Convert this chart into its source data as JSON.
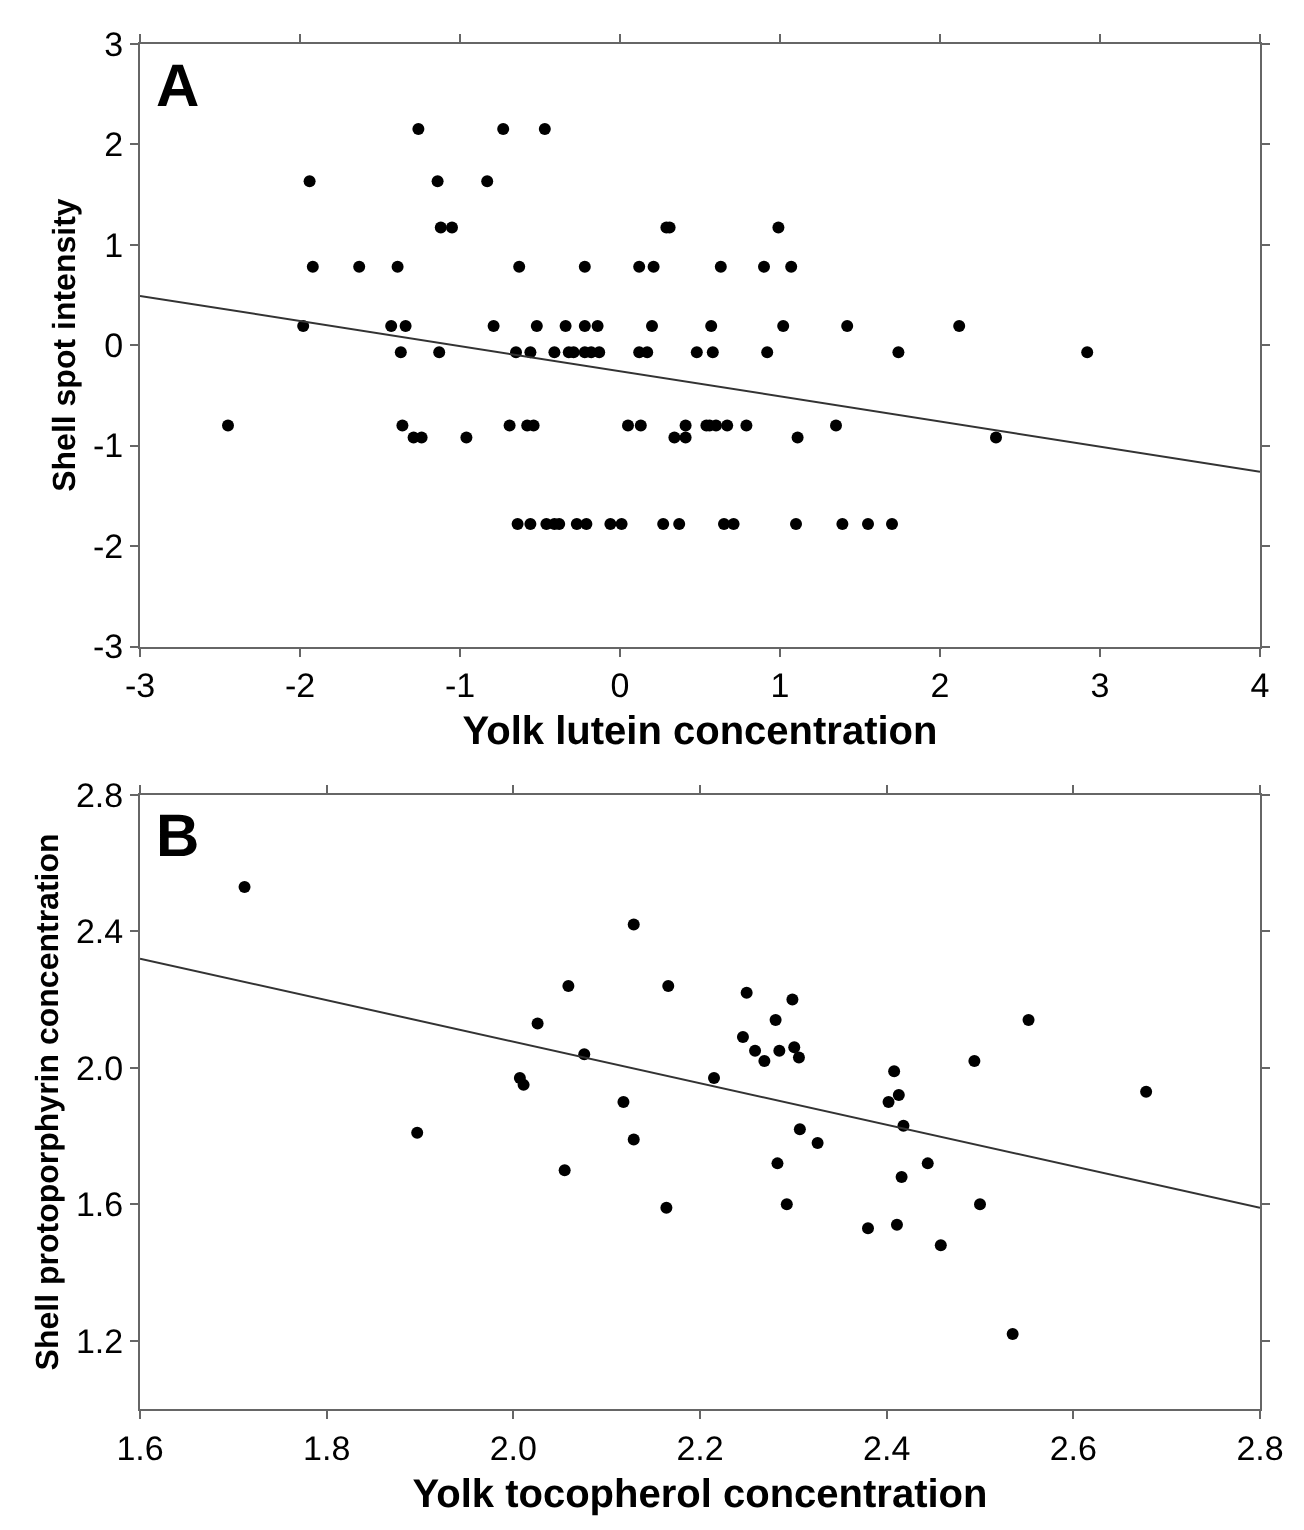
{
  "chart_data": [
    {
      "type": "scatter",
      "xlabel": "Yolk lutein concentration",
      "ylabel": "Shell spot intensity",
      "annotations": [
        "A"
      ],
      "xlim": [
        -3,
        4
      ],
      "ylim": [
        -3,
        3
      ],
      "xticks": [
        -3,
        -2,
        -1,
        0,
        1,
        2,
        3,
        4
      ],
      "yticks": [
        -3,
        -2,
        -1,
        0,
        1,
        2,
        3
      ],
      "series": [
        {
          "marker": "circle",
          "color": "#000000",
          "x": [
            -1.26,
            -0.73,
            -0.47,
            -1.94,
            -1.14,
            -0.83,
            -1.12,
            -1.05,
            0.29,
            0.31,
            0.99,
            -1.92,
            -1.63,
            -1.39,
            -0.63,
            -0.22,
            0.12,
            0.21,
            0.63,
            0.9,
            1.07,
            -1.98,
            -1.43,
            -1.34,
            -0.79,
            -0.52,
            -0.34,
            -0.22,
            -0.14,
            0.2,
            0.57,
            1.02,
            1.42,
            2.12,
            -1.37,
            -1.13,
            -0.65,
            -0.56,
            -0.41,
            -0.32,
            -0.29,
            -0.22,
            -0.18,
            -0.13,
            0.12,
            0.17,
            0.48,
            0.58,
            0.92,
            1.74,
            2.92,
            -2.45,
            -1.36,
            -0.69,
            -0.58,
            -0.54,
            0.05,
            0.13,
            0.41,
            0.54,
            0.56,
            0.6,
            0.67,
            0.79,
            1.35,
            -1.29,
            -1.24,
            -0.96,
            0.34,
            0.41,
            1.11,
            2.35,
            -0.64,
            -0.56,
            -0.46,
            -0.41,
            -0.38,
            -0.27,
            -0.21,
            -0.06,
            0.01,
            0.27,
            0.37,
            0.65,
            0.71,
            1.1,
            1.39,
            1.55,
            1.7
          ],
          "values": [
            2.15,
            2.15,
            2.15,
            1.63,
            1.63,
            1.63,
            1.17,
            1.17,
            1.17,
            1.17,
            1.17,
            0.78,
            0.78,
            0.78,
            0.78,
            0.78,
            0.78,
            0.78,
            0.78,
            0.78,
            0.78,
            0.19,
            0.19,
            0.19,
            0.19,
            0.19,
            0.19,
            0.19,
            0.19,
            0.19,
            0.19,
            0.19,
            0.19,
            0.19,
            -0.07,
            -0.07,
            -0.07,
            -0.07,
            -0.07,
            -0.07,
            -0.07,
            -0.07,
            -0.07,
            -0.07,
            -0.07,
            -0.07,
            -0.07,
            -0.07,
            -0.07,
            -0.07,
            -0.07,
            -0.8,
            -0.8,
            -0.8,
            -0.8,
            -0.8,
            -0.8,
            -0.8,
            -0.8,
            -0.8,
            -0.8,
            -0.8,
            -0.8,
            -0.8,
            -0.8,
            -0.92,
            -0.92,
            -0.92,
            -0.92,
            -0.92,
            -0.92,
            -0.92,
            -1.78,
            -1.78,
            -1.78,
            -1.78,
            -1.78,
            -1.78,
            -1.78,
            -1.78,
            -1.78,
            -1.78,
            -1.78,
            -1.78,
            -1.78,
            -1.78,
            -1.78,
            -1.78,
            -1.78
          ]
        },
        {
          "type": "line",
          "marker": "none",
          "color": "#333333",
          "x": [
            -3,
            4
          ],
          "values": [
            0.49,
            -1.26
          ]
        }
      ]
    },
    {
      "type": "scatter",
      "xlabel": "Yolk tocopherol concentration",
      "ylabel": "Shell protoporphyrin concentration",
      "annotations": [
        "B"
      ],
      "xlim": [
        1.6,
        2.8
      ],
      "ylim": [
        1.0,
        2.8
      ],
      "xticks": [
        {
          "value": 1.6,
          "label": "1.6"
        },
        {
          "value": 1.8,
          "label": "1.8"
        },
        {
          "value": 2.0,
          "label": "2.0"
        },
        {
          "value": 2.2,
          "label": "2.2"
        },
        {
          "value": 2.4,
          "label": "2.4"
        },
        {
          "value": 2.6,
          "label": "2.6"
        },
        {
          "value": 2.8,
          "label": "2.8"
        }
      ],
      "yticks": [
        {
          "value": 1.2,
          "label": "1.2"
        },
        {
          "value": 1.6,
          "label": "1.6"
        },
        {
          "value": 2.0,
          "label": "2.0"
        },
        {
          "value": 2.4,
          "label": "2.4"
        },
        {
          "value": 2.8,
          "label": "2.8"
        }
      ],
      "series": [
        {
          "marker": "circle",
          "color": "#000000",
          "x": [
            1.712,
            1.897,
            2.007,
            2.011,
            2.026,
            2.059,
            2.076,
            2.055,
            2.118,
            2.129,
            2.129,
            2.166,
            2.164,
            2.215,
            2.25,
            2.299,
            2.281,
            2.246,
            2.259,
            2.269,
            2.285,
            2.301,
            2.306,
            2.408,
            2.402,
            2.413,
            2.418,
            2.307,
            2.326,
            2.283,
            2.444,
            2.416,
            2.293,
            2.38,
            2.411,
            2.458,
            2.5,
            2.494,
            2.552,
            2.678,
            2.535
          ],
          "values": [
            2.53,
            1.81,
            1.97,
            1.95,
            2.13,
            2.24,
            2.04,
            1.7,
            1.9,
            2.42,
            1.79,
            2.24,
            1.59,
            1.97,
            2.22,
            2.2,
            2.14,
            2.09,
            2.05,
            2.02,
            2.05,
            2.06,
            2.03,
            1.99,
            1.9,
            1.92,
            1.83,
            1.82,
            1.78,
            1.72,
            1.72,
            1.68,
            1.6,
            1.53,
            1.54,
            1.48,
            1.6,
            2.02,
            2.14,
            1.93,
            1.22
          ]
        },
        {
          "type": "line",
          "marker": "none",
          "color": "#333333",
          "x": [
            1.6,
            2.8
          ],
          "values": [
            2.32,
            1.59
          ]
        }
      ]
    }
  ]
}
